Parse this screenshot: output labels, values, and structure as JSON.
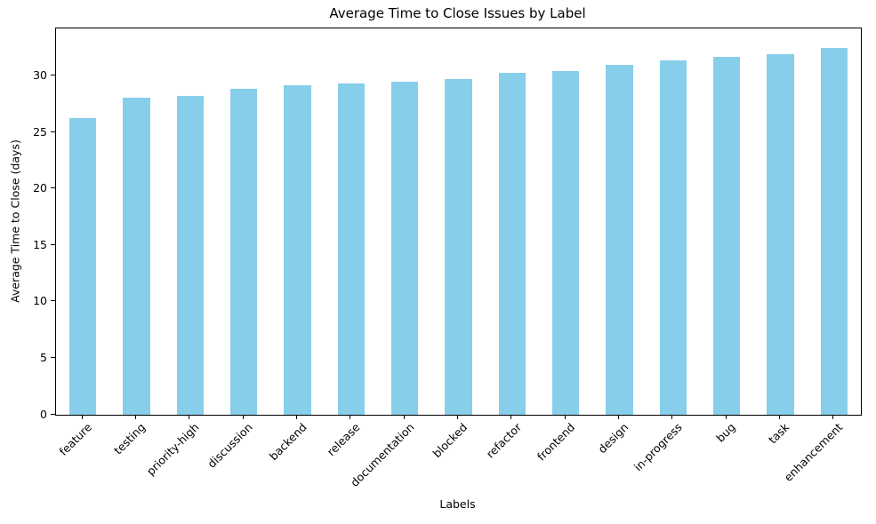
{
  "figure": {
    "background": "#ffffff"
  },
  "chart_data": {
    "type": "bar",
    "title": "Average Time to Close Issues by Label",
    "xlabel": "Labels",
    "ylabel": "Average Time to Close (days)",
    "categories": [
      "feature",
      "testing",
      "priority-high",
      "discussion",
      "backend",
      "release",
      "documentation",
      "blocked",
      "refactor",
      "frontend",
      "design",
      "in-progress",
      "bug",
      "task",
      "enhancement"
    ],
    "values": [
      26.3,
      28.1,
      28.3,
      28.9,
      29.2,
      29.4,
      29.5,
      29.8,
      30.3,
      30.5,
      31.0,
      31.4,
      31.7,
      32.0,
      32.5
    ],
    "ylim": [
      0,
      34.25
    ],
    "yticks": [
      0,
      5,
      10,
      15,
      20,
      25,
      30
    ],
    "bar_color": "#87CEEB",
    "axis_color": "#000000",
    "text_color": "#000000",
    "grid": false,
    "legend": false,
    "x_tick_rotation_deg": 45,
    "bar_width_fraction": 0.5
  }
}
